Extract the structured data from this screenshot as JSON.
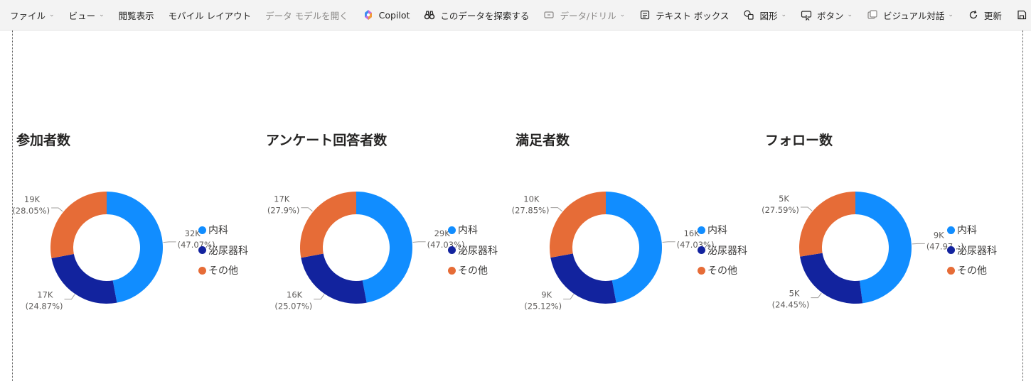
{
  "toolbar": {
    "file": "ファイル",
    "view": "ビュー",
    "reading_view": "閲覧表示",
    "mobile_layout": "モバイル レイアウト",
    "open_data_model": "データ モデルを開く",
    "copilot": "Copilot",
    "explore_data": "このデータを探索する",
    "data_drill": "データ/ドリル",
    "text_box": "テキスト ボックス",
    "shapes": "図形",
    "buttons": "ボタン",
    "visual_interactions": "ビジュアル対話",
    "refresh": "更新"
  },
  "colors": {
    "internal": "#118DFF",
    "urology": "#12239E",
    "other": "#E66C37"
  },
  "legend": [
    "内科",
    "泌尿器科",
    "その他"
  ],
  "chart_data": [
    {
      "type": "pie",
      "title": "参加者数",
      "categories": [
        "内科",
        "泌尿器科",
        "その他"
      ],
      "values": [
        32,
        17,
        19
      ],
      "percent": [
        47.07,
        24.87,
        28.05
      ],
      "labels": [
        {
          "value": "32K",
          "pct": "(47.07%)"
        },
        {
          "value": "17K",
          "pct": "(24.87%)"
        },
        {
          "value": "19K",
          "pct": "(28.05%)"
        }
      ]
    },
    {
      "type": "pie",
      "title": "アンケート回答者数",
      "categories": [
        "内科",
        "泌尿器科",
        "その他"
      ],
      "values": [
        29,
        16,
        17
      ],
      "percent": [
        47.03,
        25.07,
        27.9
      ],
      "labels": [
        {
          "value": "29K",
          "pct": "(47.03%)"
        },
        {
          "value": "16K",
          "pct": "(25.07%)"
        },
        {
          "value": "17K",
          "pct": "(27.9%)"
        }
      ]
    },
    {
      "type": "pie",
      "title": "満足者数",
      "categories": [
        "内科",
        "泌尿器科",
        "その他"
      ],
      "values": [
        16,
        9,
        10
      ],
      "percent": [
        47.03,
        25.12,
        27.85
      ],
      "labels": [
        {
          "value": "16K",
          "pct": "(47.03%)"
        },
        {
          "value": "9K",
          "pct": "(25.12%)"
        },
        {
          "value": "10K",
          "pct": "(27.85%)"
        }
      ]
    },
    {
      "type": "pie",
      "title": "フォロー数",
      "categories": [
        "内科",
        "泌尿器科",
        "その他"
      ],
      "values": [
        9,
        5,
        5
      ],
      "percent": [
        47.97,
        24.45,
        27.59
      ],
      "labels": [
        {
          "value": "9K",
          "pct": "(47.97...)"
        },
        {
          "value": "5K",
          "pct": "(24.45%)"
        },
        {
          "value": "5K",
          "pct": "(27.59%)"
        }
      ]
    }
  ]
}
